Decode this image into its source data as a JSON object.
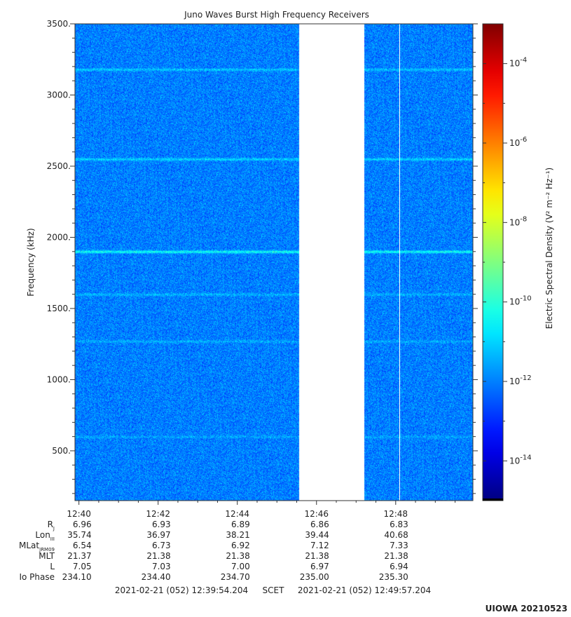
{
  "chart_data": {
    "type": "heatmap",
    "title": "Juno Waves Burst High Frequency Receivers",
    "ylabel": "Frequency (kHz)",
    "colorbar_label": "Electric Spectral Density (V² m⁻² Hz⁻¹)",
    "ylim": [
      150,
      3500
    ],
    "y_ticks": [
      "500.",
      "1000.",
      "1500.",
      "2000.",
      "2500.",
      "3000.",
      "3500."
    ],
    "y_tick_values": [
      500,
      1000,
      1500,
      2000,
      2500,
      3000,
      3500
    ],
    "x_range": [
      "12:39:54",
      "12:49:57"
    ],
    "x_ticks": [
      "12:40",
      "12:42",
      "12:44",
      "12:46",
      "12:48"
    ],
    "data_gap": [
      "12:45:33",
      "12:47:12"
    ],
    "vertical_line_time": "12:48:06",
    "colorbar_log_range": [
      -15,
      -3
    ],
    "colorbar_ticks": [
      "10-4",
      "10-6",
      "10-8",
      "10-10",
      "10-12",
      "10-14"
    ],
    "colorbar_tick_exps": [
      -4,
      -6,
      -8,
      -10,
      -12,
      -14
    ],
    "background_level_exp": -12,
    "emission_lines": [
      {
        "freq_khz": 3180,
        "level_exp": -11.1
      },
      {
        "freq_khz": 2550,
        "level_exp": -10.9
      },
      {
        "freq_khz": 1900,
        "level_exp": -10.2
      },
      {
        "freq_khz": 1600,
        "level_exp": -11.3
      },
      {
        "freq_khz": 1270,
        "level_exp": -11.4
      },
      {
        "freq_khz": 600,
        "level_exp": -11.5
      }
    ],
    "colors": {
      "gap": "#ffffff",
      "background": "#2ec8f0",
      "line": "#22f088"
    }
  },
  "ephemeris": {
    "rows": [
      {
        "label": "R",
        "sub": "J",
        "values": [
          "6.96",
          "6.93",
          "6.89",
          "6.86",
          "6.83"
        ]
      },
      {
        "label": "Lon",
        "sub": "III",
        "values": [
          "35.74",
          "36.97",
          "38.21",
          "39.44",
          "40.68"
        ]
      },
      {
        "label": "MLat",
        "sub": "JRM09",
        "values": [
          "6.54",
          "6.73",
          "6.92",
          "7.12",
          "7.33"
        ]
      },
      {
        "label": "MLT",
        "sub": "",
        "values": [
          "21.37",
          "21.38",
          "21.38",
          "21.38",
          "21.38"
        ]
      },
      {
        "label": "L",
        "sub": "",
        "values": [
          "7.05",
          "7.03",
          "7.00",
          "6.97",
          "6.94"
        ]
      },
      {
        "label": "Io Phase",
        "sub": "",
        "values": [
          "234.10",
          "234.40",
          "234.70",
          "235.00",
          "235.30"
        ]
      }
    ]
  },
  "footer": {
    "start": "2021-02-21 (052) 12:39:54.204",
    "scet": "SCET",
    "end": "2021-02-21 (052) 12:49:57.204",
    "credit": "UIOWA 20210523"
  }
}
